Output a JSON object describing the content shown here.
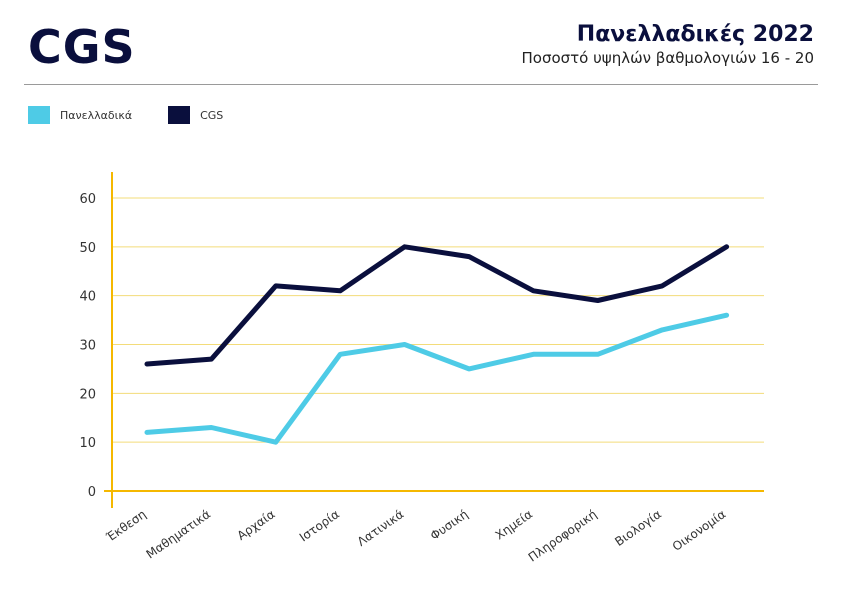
{
  "header": {
    "logo": "CGS",
    "title": "Πανελλαδικές 2022",
    "subtitle": "Ποσοστό υψηλών βαθμολογιών 16 - 20"
  },
  "chart_data": {
    "type": "line",
    "categories": [
      "Έκθεση",
      "Μαθηματικά",
      "Αρχαία",
      "Ιστορία",
      "Λατινικά",
      "Φυσική",
      "Χημεία",
      "Πληροφορική",
      "Βιολογία",
      "Οικονομία"
    ],
    "series": [
      {
        "name": "Πανελλαδικά",
        "color": "#4ecbe6",
        "values": [
          12,
          13,
          10,
          28,
          30,
          25,
          28,
          28,
          33,
          36
        ]
      },
      {
        "name": "CGS",
        "color": "#0a0f3d",
        "values": [
          26,
          27,
          42,
          41,
          50,
          48,
          41,
          39,
          42,
          50
        ]
      }
    ],
    "ylim": [
      0,
      60
    ],
    "yticks": [
      0,
      10,
      20,
      30,
      40,
      50,
      60
    ],
    "grid": true,
    "legend_position": "top-left",
    "axis_color": "#f5b800",
    "grid_color": "#f3dc7a"
  }
}
